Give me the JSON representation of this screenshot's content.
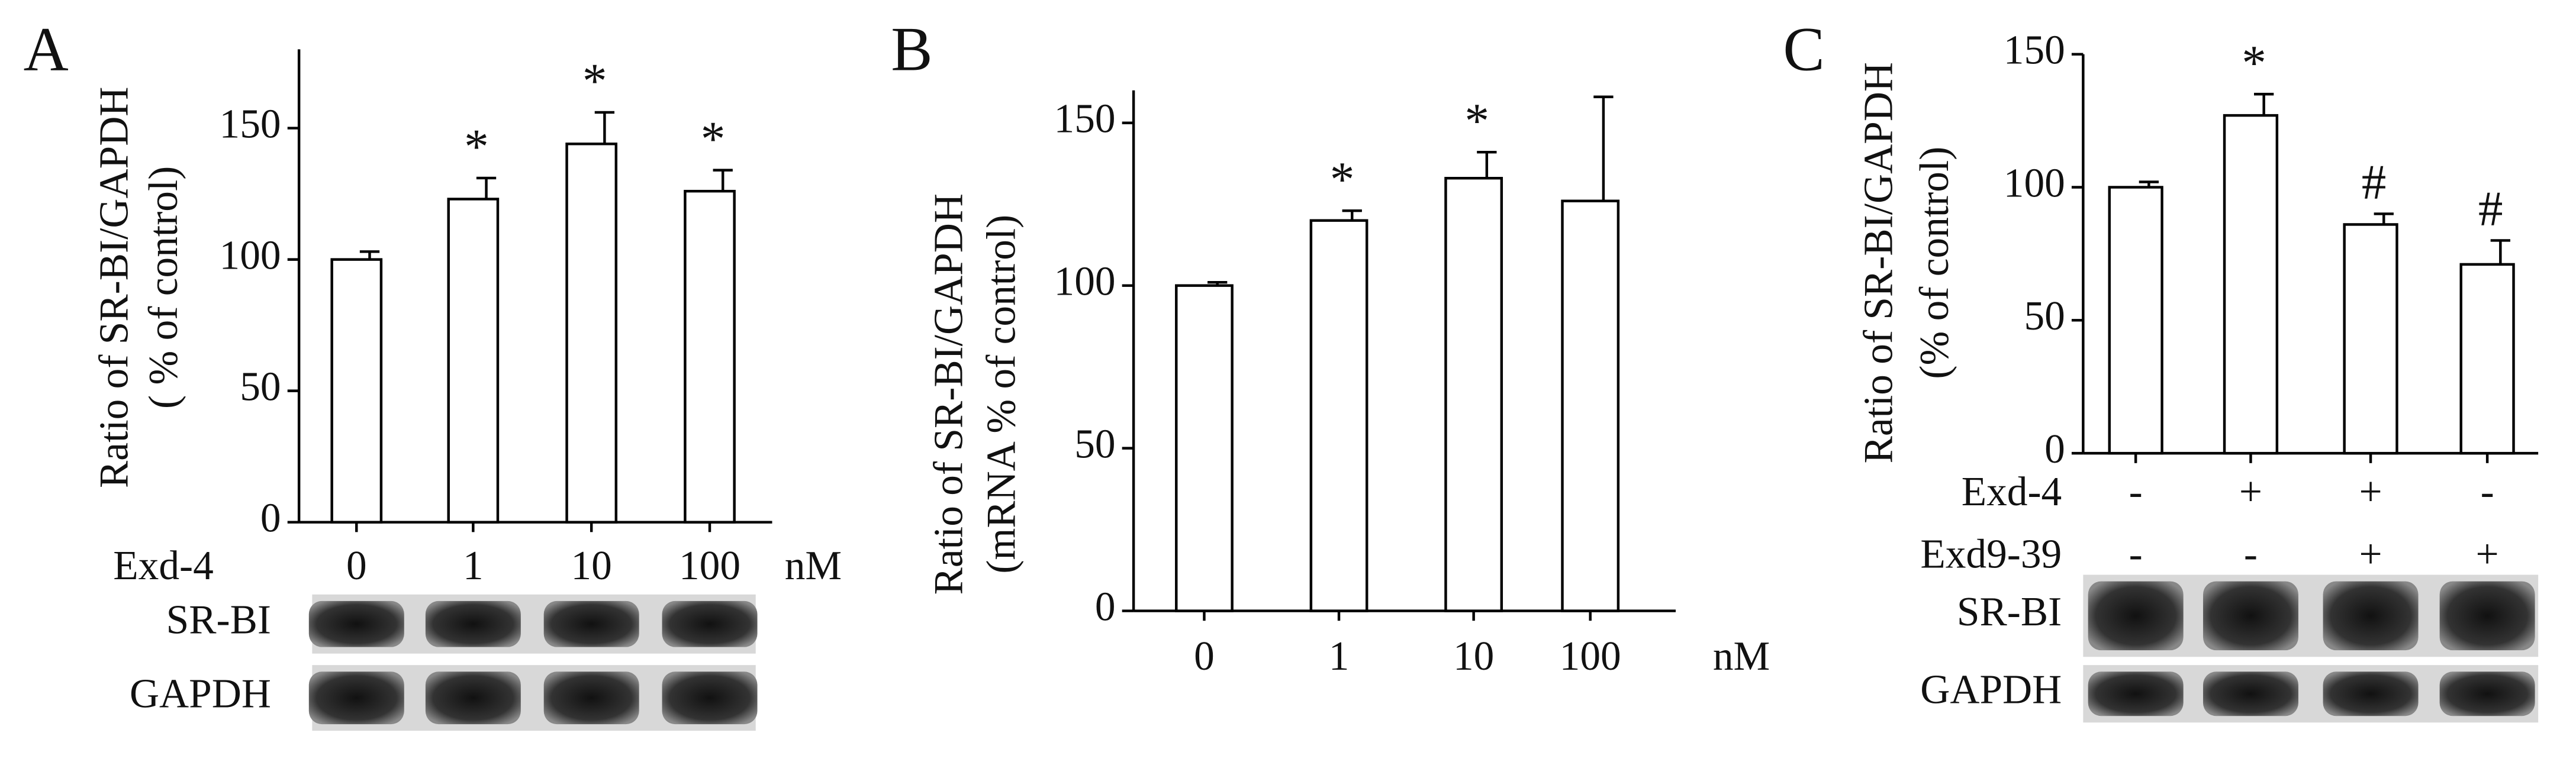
{
  "chart_data": [
    {
      "type": "bar",
      "panel": "A",
      "ylabel": [
        "Ratio of SR-BI/GAPDH",
        "( % of control)"
      ],
      "xlabel": "Exd-4",
      "unit": "nM",
      "categories": [
        "0",
        "1",
        "10",
        "100"
      ],
      "values": [
        100,
        123,
        144,
        126
      ],
      "errors": [
        3,
        8,
        12,
        8
      ],
      "markers": [
        null,
        "*",
        "*",
        "*"
      ],
      "ylim": [
        0,
        180
      ],
      "yticks": [
        0,
        50,
        100,
        150
      ],
      "blot_labels": [
        "SR-BI",
        "GAPDH"
      ]
    },
    {
      "type": "bar",
      "panel": "B",
      "ylabel": [
        "Ratio of SR-BI/GAPDH",
        "(mRNA % of control)"
      ],
      "unit": "nM",
      "categories": [
        "0",
        "1",
        "10",
        "100"
      ],
      "values": [
        100,
        120,
        133,
        126
      ],
      "errors": [
        1,
        3,
        8,
        32
      ],
      "markers": [
        null,
        "*",
        "*",
        null
      ],
      "ylim": [
        0,
        160
      ],
      "yticks": [
        0,
        50,
        100,
        150
      ]
    },
    {
      "type": "bar",
      "panel": "C",
      "ylabel": [
        "Ratio of SR-BI/GAPDH",
        "(% of control)"
      ],
      "conditions": [
        {
          "name": "Exd-4",
          "values": [
            "-",
            "+",
            "+",
            "-"
          ]
        },
        {
          "name": "Exd9-39",
          "values": [
            "-",
            "-",
            "+",
            "+"
          ]
        }
      ],
      "values": [
        100,
        127,
        86,
        71
      ],
      "errors": [
        2,
        8,
        4,
        9
      ],
      "markers": [
        null,
        "*",
        "#",
        "#"
      ],
      "ylim": [
        0,
        150
      ],
      "yticks": [
        0,
        50,
        100,
        150
      ],
      "blot_labels": [
        "SR-BI",
        "GAPDH"
      ]
    }
  ]
}
